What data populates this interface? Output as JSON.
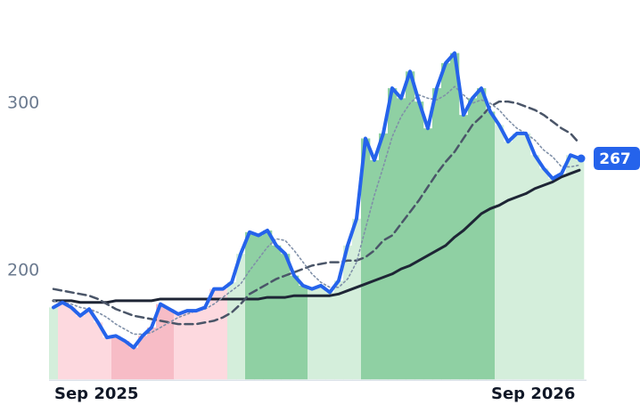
{
  "chart_data": {
    "type": "line",
    "categories": [
      "Sep 2025",
      null,
      null,
      null,
      null,
      null,
      null,
      null,
      null,
      null,
      null,
      null,
      null,
      null,
      null,
      null,
      null,
      null,
      null,
      null,
      null,
      null,
      null,
      null,
      null,
      null,
      null,
      null,
      null,
      null,
      null,
      null,
      null,
      null,
      null,
      null,
      null,
      null,
      null,
      null,
      null,
      null,
      null,
      null,
      null,
      null,
      null,
      null,
      null,
      "Sep 2026",
      null,
      null,
      null,
      null,
      null,
      null,
      null,
      null,
      null,
      null
    ],
    "ylim": [
      135,
      360
    ],
    "yticks": [
      200,
      300
    ],
    "bar_colors": [
      "#d4eedb",
      "#fdd9df",
      "#fdd9df",
      "#fdd9df",
      "#fdd9df",
      "#fdd9df",
      "#fdd9df",
      "#f7bcc6",
      "#f7bcc6",
      "#f7bcc6",
      "#f7bcc6",
      "#f7bcc6",
      "#f7bcc6",
      "#f7bcc6",
      "#fdd9df",
      "#fdd9df",
      "#fdd9df",
      "#fdd9df",
      "#fdd9df",
      "#fdd9df",
      "#d4eedb",
      "#d4eedb",
      "#8fd0a3",
      "#8fd0a3",
      "#8fd0a3",
      "#8fd0a3",
      "#8fd0a3",
      "#8fd0a3",
      "#8fd0a3",
      "#d4eedb",
      "#d4eedb",
      "#d4eedb",
      "#d4eedb",
      "#d4eedb",
      "#d4eedb",
      "#8fd0a3",
      "#8fd0a3",
      "#8fd0a3",
      "#8fd0a3",
      "#8fd0a3",
      "#8fd0a3",
      "#8fd0a3",
      "#8fd0a3",
      "#8fd0a3",
      "#8fd0a3",
      "#8fd0a3",
      "#8fd0a3",
      "#8fd0a3",
      "#8fd0a3",
      "#8fd0a3",
      "#d4eedb",
      "#d4eedb",
      "#d4eedb",
      "#d4eedb",
      "#d4eedb",
      "#d4eedb",
      "#d4eedb",
      "#d4eedb",
      "#d4eedb",
      "#d4eedb"
    ],
    "series": [
      {
        "color": "#2563eb",
        "style": "solid",
        "width": 4,
        "values": [
          178,
          181,
          178,
          173,
          177,
          169,
          160,
          161,
          158,
          154,
          161,
          166,
          180,
          177,
          174,
          176,
          176,
          178,
          189,
          189,
          193,
          210,
          223,
          221,
          224,
          215,
          210,
          197,
          191,
          189,
          191,
          187,
          194,
          215,
          231,
          279,
          266,
          282,
          309,
          303,
          319,
          301,
          285,
          309,
          324,
          330,
          293,
          303,
          309,
          295,
          287,
          277,
          282,
          282,
          269,
          261,
          255,
          258,
          269,
          267
        ]
      },
      {
        "color": "#8090a8",
        "style": "dotted",
        "width": 1.6,
        "values": [
          182,
          181,
          180,
          178,
          177,
          175,
          172,
          168,
          165,
          162,
          162,
          163,
          166,
          169,
          172,
          174,
          176,
          177,
          180,
          184,
          188,
          192,
          200,
          207,
          214,
          219,
          218,
          212,
          205,
          198,
          193,
          190,
          190,
          195,
          205,
          225,
          245,
          262,
          280,
          292,
          300,
          305,
          303,
          302,
          305,
          310,
          305,
          300,
          302,
          300,
          296,
          290,
          285,
          282,
          278,
          272,
          268,
          262,
          262,
          263
        ]
      },
      {
        "color": "#4a5568",
        "style": "dashed",
        "width": 2.5,
        "values": [
          189,
          188,
          187,
          186,
          185,
          183,
          180,
          177,
          175,
          173,
          172,
          171,
          170,
          169,
          168,
          168,
          168,
          169,
          170,
          172,
          175,
          180,
          186,
          189,
          192,
          195,
          197,
          199,
          201,
          203,
          204,
          205,
          205,
          206,
          206,
          208,
          212,
          218,
          221,
          228,
          235,
          242,
          250,
          258,
          265,
          271,
          279,
          287,
          292,
          298,
          301,
          301,
          300,
          298,
          296,
          293,
          289,
          285,
          282,
          276
        ]
      },
      {
        "color": "#1e2535",
        "style": "solid",
        "width": 3,
        "values": [
          182,
          182,
          182,
          181,
          181,
          181,
          181,
          182,
          182,
          182,
          182,
          182,
          183,
          183,
          183,
          183,
          183,
          183,
          183,
          183,
          183,
          183,
          183,
          183,
          184,
          184,
          184,
          185,
          185,
          185,
          185,
          185,
          186,
          188,
          190,
          192,
          194,
          196,
          198,
          201,
          203,
          206,
          209,
          212,
          215,
          220,
          224,
          229,
          234,
          237,
          239,
          242,
          244,
          246,
          249,
          251,
          253,
          256,
          258,
          260
        ]
      }
    ]
  }
}
